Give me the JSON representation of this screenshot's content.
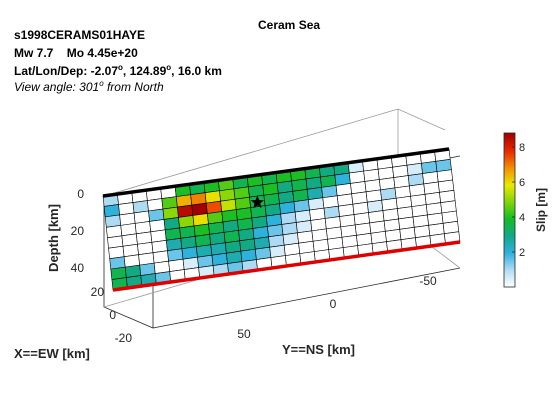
{
  "header": {
    "title": "Ceram Sea",
    "event_id": "s1998CERAMS01HAYE",
    "mw_text": "Mw 7.7",
    "mo_text": "Mo 4.45e+20",
    "loc_prefix": "Lat/Lon/Dep: -2.07",
    "loc_mid": ", 124.89",
    "loc_suffix": ", 16.0 km",
    "deg_symbol": "o",
    "view_prefix": "View angle: 301",
    "view_suffix": " from North"
  },
  "chart_data": {
    "type": "heatmap",
    "title": "Ceram Sea",
    "xlabel": "X==EW [km]",
    "ylabel": "Y==NS [km]",
    "zlabel": "Depth [km]",
    "colorbar_label": "Slip [m]",
    "colorbar_range": [
      0,
      8.8
    ],
    "colorbar_ticks": [
      2,
      4,
      6,
      8
    ],
    "colormap": [
      "#ffffff",
      "#b0dcf4",
      "#2fb1df",
      "#13a889",
      "#12bd25",
      "#7fd40a",
      "#e8ea00",
      "#f29200",
      "#ea2a00",
      "#a10000"
    ],
    "depth_ticks": [
      0,
      20,
      40
    ],
    "ns_ticks": [
      50,
      0,
      -50
    ],
    "ew_ticks": [
      20,
      0,
      -20
    ],
    "grid": true,
    "rows": 9,
    "cols": 24,
    "slip": [
      [
        1.0,
        0.0,
        0.0,
        0.0,
        0.0,
        4.0,
        3.5,
        4.0,
        4.5,
        3.5,
        4.0,
        3.5,
        4.0,
        4.0,
        3.5,
        3.0,
        3.0,
        0.5,
        0.0,
        0.0,
        0.0,
        0.0,
        0.0,
        0.0
      ],
      [
        2.0,
        0.0,
        1.0,
        0.0,
        4.5,
        6.5,
        7.0,
        6.0,
        5.0,
        4.5,
        3.5,
        4.0,
        3.0,
        3.5,
        3.0,
        3.5,
        2.0,
        0.0,
        0.0,
        0.0,
        0.0,
        0.5,
        1.5,
        1.5
      ],
      [
        1.0,
        0.0,
        0.0,
        1.5,
        5.0,
        8.5,
        8.8,
        7.5,
        5.5,
        4.5,
        3.5,
        3.5,
        3.0,
        3.5,
        2.5,
        1.5,
        0.0,
        0.0,
        0.0,
        0.0,
        0.0,
        1.0,
        0.0,
        0.0
      ],
      [
        0.0,
        0.0,
        0.0,
        0.0,
        3.0,
        5.0,
        6.0,
        4.5,
        4.0,
        4.0,
        3.5,
        3.0,
        2.0,
        1.5,
        0.5,
        0.0,
        0.0,
        0.0,
        0.0,
        1.0,
        0.0,
        0.0,
        0.0,
        0.0
      ],
      [
        0.0,
        0.0,
        0.0,
        0.0,
        3.5,
        3.5,
        4.0,
        3.5,
        3.0,
        3.5,
        3.0,
        2.0,
        1.0,
        0.5,
        0.0,
        1.0,
        0.0,
        0.0,
        0.5,
        0.0,
        0.0,
        0.0,
        0.0,
        0.0
      ],
      [
        0.0,
        0.0,
        0.0,
        0.0,
        2.5,
        3.0,
        3.5,
        3.0,
        3.5,
        3.0,
        2.0,
        1.5,
        1.0,
        0.5,
        0.0,
        0.0,
        0.0,
        0.0,
        0.0,
        0.0,
        0.0,
        0.0,
        0.0,
        0.0
      ],
      [
        1.5,
        0.0,
        0.0,
        0.0,
        1.5,
        2.0,
        2.5,
        2.5,
        3.0,
        3.0,
        2.5,
        1.0,
        0.5,
        0.0,
        0.0,
        0.0,
        0.0,
        0.0,
        0.0,
        0.0,
        0.0,
        0.0,
        0.0,
        0.0
      ],
      [
        3.5,
        3.0,
        1.5,
        0.0,
        0.0,
        0.5,
        1.5,
        2.0,
        2.5,
        2.0,
        1.5,
        0.5,
        0.0,
        0.0,
        0.0,
        0.0,
        0.0,
        0.0,
        0.0,
        0.0,
        0.0,
        0.0,
        0.0,
        0.0
      ],
      [
        3.5,
        3.0,
        2.5,
        1.5,
        0.0,
        0.0,
        0.5,
        1.0,
        1.5,
        1.0,
        0.0,
        0.0,
        0.0,
        0.0,
        0.0,
        0.0,
        0.0,
        0.0,
        0.0,
        0.0,
        0.0,
        0.0,
        0.0,
        0.0
      ]
    ],
    "hypocenter": {
      "row": 2,
      "col": 10
    },
    "top_edge_color": "#000000",
    "bottom_edge_color": "#e00000"
  }
}
